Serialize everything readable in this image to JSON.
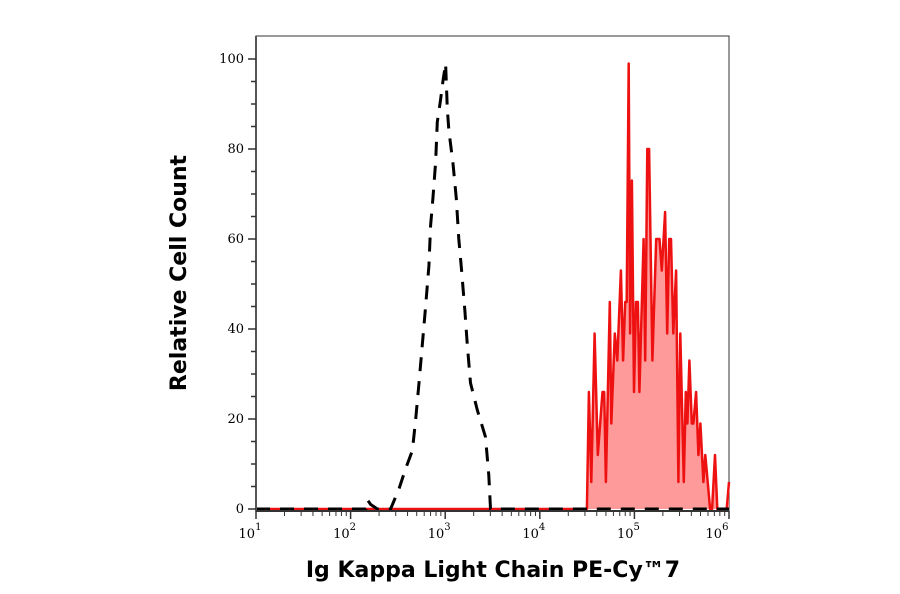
{
  "chart_data": {
    "type": "area",
    "title": "",
    "xlabel": "Ig Kappa Light Chain PE-Cy™7",
    "ylabel": "Relative Cell Count",
    "x_scale": "log",
    "xlim": [
      10,
      1000000
    ],
    "ylim": [
      0,
      100
    ],
    "x_ticks": [
      {
        "base": "10",
        "exp": "1"
      },
      {
        "base": "10",
        "exp": "2"
      },
      {
        "base": "10",
        "exp": "3"
      },
      {
        "base": "10",
        "exp": "4"
      },
      {
        "base": "10",
        "exp": "5"
      },
      {
        "base": "10",
        "exp": "6"
      }
    ],
    "y_ticks": [
      "0",
      "20",
      "40",
      "60",
      "80",
      "100"
    ],
    "grid": false,
    "series": [
      {
        "style": "dashed-line",
        "color": "#000000",
        "x": [
          10,
          145,
          151,
          163,
          192,
          265,
          325,
          382,
          450,
          488,
          528,
          573,
          621,
          673,
          701,
          742,
          792,
          826,
          894,
          946,
          1009,
          1052,
          1094,
          1205,
          1309,
          1394,
          1489,
          1614,
          1712,
          1853,
          2183,
          2669,
          2893,
          3011,
          3100,
          1000000
        ],
        "y": [
          0,
          0,
          2,
          1,
          0,
          0,
          4.5,
          9,
          13,
          20,
          28,
          36.5,
          45,
          54,
          63,
          69,
          77,
          86,
          91,
          95,
          99,
          89,
          84,
          77,
          69,
          60,
          53,
          44,
          36.5,
          28,
          22,
          16,
          7.5,
          0,
          0,
          0
        ]
      },
      {
        "style": "filled-line",
        "color": "#ee1111",
        "fill": "#ff9a9a",
        "x": [
          10,
          31500,
          33000,
          35000,
          38000,
          41000,
          46000,
          48000,
          50000,
          55000,
          57000,
          62000,
          66000,
          72000,
          76000,
          80000,
          83000,
          87000,
          90000,
          94000,
          99000,
          104000,
          109000,
          113000,
          125000,
          130000,
          137000,
          143000,
          155000,
          170000,
          184000,
          195000,
          211000,
          222000,
          233000,
          244000,
          258000,
          276000,
          292000,
          306000,
          333000,
          349000,
          363000,
          381000,
          404000,
          420000,
          449000,
          475000,
          498000,
          536000,
          562000,
          631000,
          662000,
          711000,
          753000,
          946000,
          1000000
        ],
        "y": [
          0,
          0,
          26,
          6,
          39,
          12,
          26,
          26,
          6,
          46,
          19,
          39,
          33,
          53,
          33,
          46,
          46,
          99,
          39,
          73,
          26,
          46,
          46,
          26,
          60,
          33,
          80,
          80,
          33,
          60,
          60,
          53,
          66,
          39,
          60,
          60,
          39,
          53,
          6,
          39,
          6,
          26,
          19,
          33,
          19,
          19,
          26,
          12,
          19,
          6,
          12,
          0,
          0,
          12,
          0,
          0,
          6
        ]
      }
    ]
  }
}
